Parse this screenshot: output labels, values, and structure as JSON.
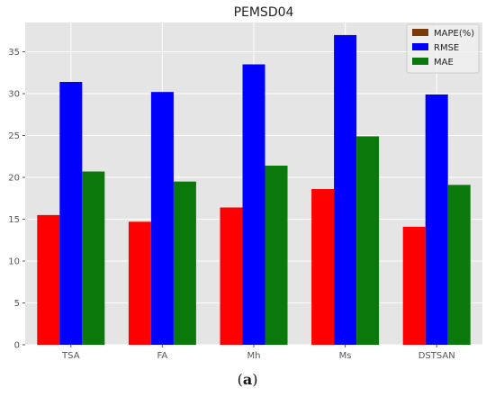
{
  "chart_data": {
    "type": "bar",
    "title": "PEMSD04",
    "categories": [
      "TSA",
      "FA",
      "Mh",
      "Ms",
      "DSTSAN"
    ],
    "series": [
      {
        "name": "MAPE(%)",
        "values": [
          15.5,
          14.7,
          16.4,
          18.6,
          14.1
        ],
        "color": "#ff0000",
        "legend_color": "#7a3a0a"
      },
      {
        "name": "RMSE",
        "values": [
          31.4,
          30.2,
          33.5,
          37.0,
          29.9
        ],
        "color": "#0000ff",
        "legend_color": "#0000ff"
      },
      {
        "name": "MAE",
        "values": [
          20.7,
          19.5,
          21.4,
          24.9,
          19.1
        ],
        "color": "#0a780a",
        "legend_color": "#0a780a"
      }
    ],
    "ylim": [
      0,
      38.5
    ],
    "yticks": [
      0,
      5,
      10,
      15,
      20,
      25,
      30,
      35
    ],
    "grid": true,
    "legend_position": "top-right",
    "background": "#e5e5e5",
    "xlabel": "",
    "ylabel": ""
  },
  "caption": {
    "open": "(",
    "letter": "a",
    "close": ")"
  }
}
